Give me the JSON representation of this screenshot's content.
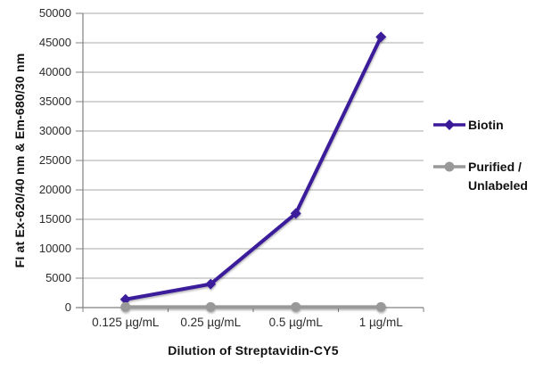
{
  "chart_data": {
    "type": "line",
    "title": "",
    "xlabel": "Dilution of Streptavidin-CY5",
    "ylabel": "FI at Ex-620/40 nm & Em-680/30 nm",
    "categories": [
      "0.125 µg/mL",
      "0.25 µg/mL",
      "0.5 µg/mL",
      "1 µg/mL"
    ],
    "series": [
      {
        "name": "Biotin",
        "values": [
          1400,
          4000,
          16000,
          46000
        ],
        "color": "#3b1a9a",
        "marker": "diamond"
      },
      {
        "name": "Purified / Unlabeled",
        "values": [
          100,
          100,
          100,
          100
        ],
        "color": "#999999",
        "marker": "circle"
      }
    ],
    "ylim": [
      0,
      50000
    ],
    "ytick_step": 5000,
    "grid": true,
    "legend_position": "right"
  },
  "colors": {
    "grid": "#a9a9a9",
    "axis": "#808080",
    "tick_text": "#2b2b2b",
    "title_text": "#111111"
  }
}
